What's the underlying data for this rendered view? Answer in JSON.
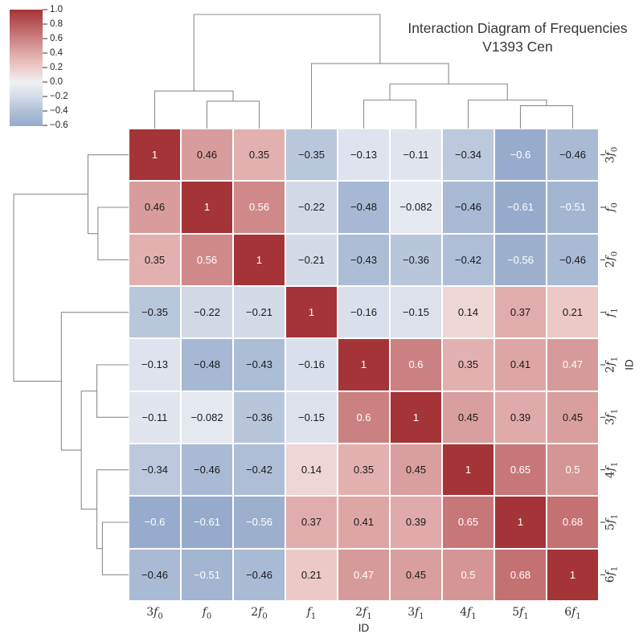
{
  "title": {
    "line1": "Interaction Diagram of Frequencies",
    "line2": "V1393 Cen"
  },
  "axes": {
    "x_label": "ID",
    "y_label": "ID"
  },
  "colorbar": {
    "tick_labels": [
      "1.0",
      "0.8",
      "0.6",
      "0.4",
      "0.2",
      "0.0",
      "-0.2",
      "-0.4",
      "-0.6"
    ],
    "tick_values": [
      1.0,
      0.8,
      0.6,
      0.4,
      0.2,
      0.0,
      -0.2,
      -0.4,
      -0.6
    ],
    "vmax": 1.0,
    "vmin": -0.61
  },
  "chart_data": {
    "type": "heatmap",
    "variant": "clustermap-with-dendrograms",
    "title": "Interaction Diagram of Frequencies V1393 Cen",
    "xlabel": "ID",
    "ylabel": "ID",
    "legend_position": "colorbar-top-left",
    "grid": false,
    "categories": [
      "3f0",
      "f0",
      "2f0",
      "f1",
      "2f1",
      "3f1",
      "4f1",
      "5f1",
      "6f1"
    ],
    "categories_rich": [
      {
        "pre": "3",
        "sub": "0"
      },
      {
        "pre": "",
        "sub": "0"
      },
      {
        "pre": "2",
        "sub": "0"
      },
      {
        "pre": "",
        "sub": "1"
      },
      {
        "pre": "2",
        "sub": "1"
      },
      {
        "pre": "3",
        "sub": "1"
      },
      {
        "pre": "4",
        "sub": "1"
      },
      {
        "pre": "5",
        "sub": "1"
      },
      {
        "pre": "6",
        "sub": "1"
      }
    ],
    "matrix": [
      [
        1,
        0.46,
        0.35,
        -0.35,
        -0.13,
        -0.11,
        -0.34,
        -0.6,
        -0.46
      ],
      [
        0.46,
        1,
        0.56,
        -0.22,
        -0.48,
        -0.082,
        -0.46,
        -0.61,
        -0.51
      ],
      [
        0.35,
        0.56,
        1,
        -0.21,
        -0.43,
        -0.36,
        -0.42,
        -0.56,
        -0.46
      ],
      [
        -0.35,
        -0.22,
        -0.21,
        1,
        -0.16,
        -0.15,
        0.14,
        0.37,
        0.21
      ],
      [
        -0.13,
        -0.48,
        -0.43,
        -0.16,
        1,
        0.6,
        0.35,
        0.41,
        0.47
      ],
      [
        -0.11,
        -0.082,
        -0.36,
        -0.15,
        0.6,
        1,
        0.45,
        0.39,
        0.45
      ],
      [
        -0.34,
        -0.46,
        -0.42,
        0.14,
        0.35,
        0.45,
        1,
        0.65,
        0.5
      ],
      [
        -0.6,
        -0.61,
        -0.56,
        0.37,
        0.41,
        0.39,
        0.65,
        1,
        0.68
      ],
      [
        -0.46,
        -0.51,
        -0.46,
        0.21,
        0.47,
        0.45,
        0.5,
        0.68,
        1
      ]
    ],
    "vmin": -0.61,
    "vmax": 1.0,
    "colormap_anchors": [
      [
        -0.61,
        [
          150,
          171,
          203
        ]
      ],
      [
        -0.4,
        [
          176,
          192,
          216
        ]
      ],
      [
        -0.2,
        [
          213,
          220,
          233
        ]
      ],
      [
        0.0,
        [
          239,
          240,
          243
        ]
      ],
      [
        0.2,
        [
          237,
          203,
          200
        ]
      ],
      [
        0.4,
        [
          222,
          168,
          167
        ]
      ],
      [
        0.6,
        [
          203,
          129,
          129
        ]
      ],
      [
        0.8,
        [
          185,
          90,
          91
        ]
      ],
      [
        1.0,
        [
          164,
          52,
          56
        ]
      ]
    ],
    "linkage": [
      [
        1,
        2,
        0.24
      ],
      [
        0,
        9,
        0.33
      ],
      [
        4,
        5,
        0.25
      ],
      [
        7,
        8,
        0.2
      ],
      [
        6,
        12,
        0.25
      ],
      [
        11,
        13,
        0.39
      ],
      [
        3,
        14,
        0.57
      ],
      [
        10,
        15,
        1.0
      ]
    ],
    "dendrogram_color": "#8c8c8c",
    "tick_color": "#333333",
    "white_text_rule": {
      "gte": 0.47,
      "lte": -0.5
    }
  }
}
